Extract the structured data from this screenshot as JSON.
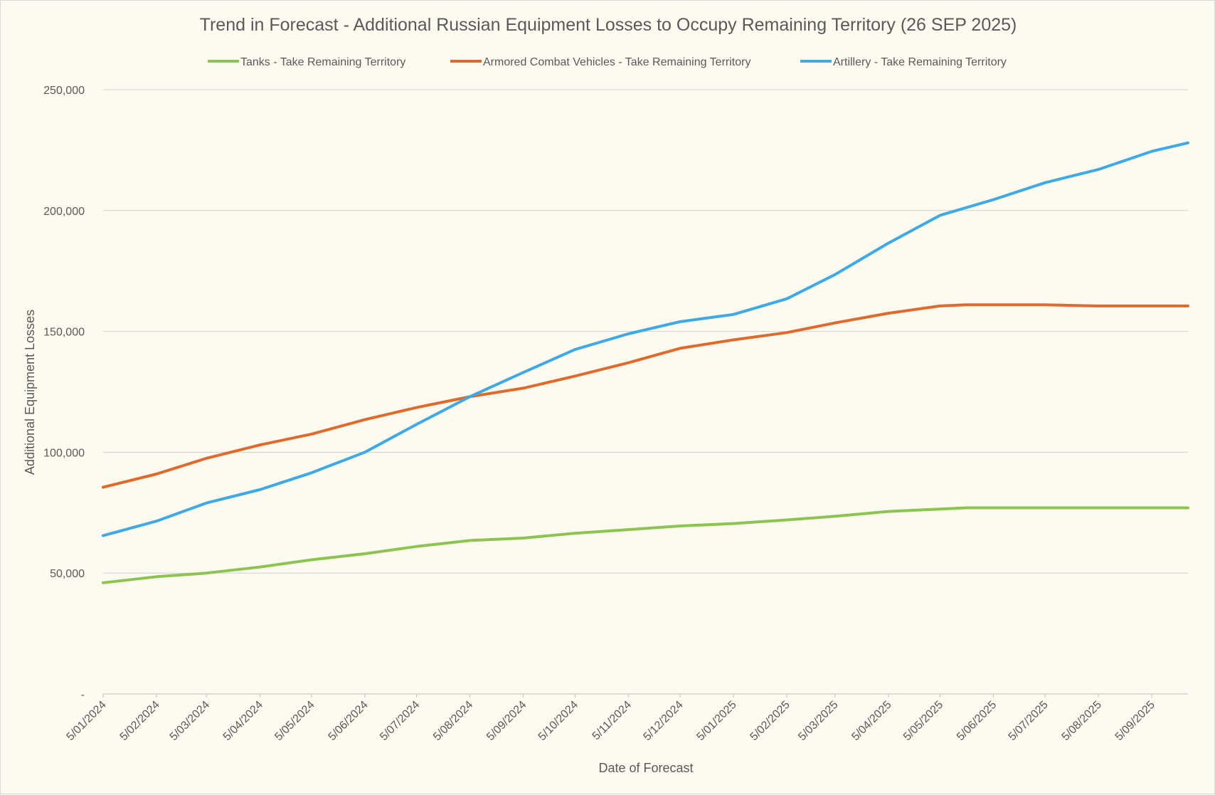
{
  "chart_data": {
    "type": "line",
    "title": "Trend in Forecast - Additional Russian Equipment Losses to Occupy Remaining Territory (26 SEP 2025)",
    "xlabel": "Date of Forecast",
    "ylabel": "Additional Equipment Losses",
    "ylim": [
      0,
      250000
    ],
    "yticks": [
      0,
      50000,
      100000,
      150000,
      200000,
      250000
    ],
    "ytick_labels": [
      "-",
      "50,000",
      "100,000",
      "150,000",
      "200,000",
      "250,000"
    ],
    "xtick_labels": [
      "5/01/2024",
      "5/02/2024",
      "5/03/2024",
      "5/04/2024",
      "5/05/2024",
      "5/06/2024",
      "5/07/2024",
      "5/08/2024",
      "5/09/2024",
      "5/10/2024",
      "5/11/2024",
      "5/12/2024",
      "5/01/2025",
      "5/02/2025",
      "5/03/2025",
      "5/04/2025",
      "5/05/2025",
      "5/06/2025",
      "5/07/2025",
      "5/08/2025",
      "5/09/2025"
    ],
    "x_range": [
      "2024-01-05",
      "2025-09-26"
    ],
    "grid": true,
    "legend_position": "top",
    "series": [
      {
        "name": "Tanks - Take Remaining Territory",
        "color": "#8dc451",
        "points": [
          [
            "2024-01-05",
            46000
          ],
          [
            "2024-02-05",
            48500
          ],
          [
            "2024-03-05",
            50000
          ],
          [
            "2024-04-05",
            52500
          ],
          [
            "2024-05-05",
            55500
          ],
          [
            "2024-06-05",
            58000
          ],
          [
            "2024-07-05",
            61000
          ],
          [
            "2024-08-05",
            63500
          ],
          [
            "2024-09-05",
            64500
          ],
          [
            "2024-10-05",
            66500
          ],
          [
            "2024-11-05",
            68000
          ],
          [
            "2024-12-05",
            69500
          ],
          [
            "2025-01-05",
            70500
          ],
          [
            "2025-02-05",
            72000
          ],
          [
            "2025-03-05",
            73500
          ],
          [
            "2025-04-05",
            75500
          ],
          [
            "2025-05-05",
            76500
          ],
          [
            "2025-05-20",
            77000
          ],
          [
            "2025-06-05",
            77000
          ],
          [
            "2025-07-05",
            77000
          ],
          [
            "2025-08-05",
            77000
          ],
          [
            "2025-09-05",
            77000
          ],
          [
            "2025-09-26",
            77000
          ]
        ]
      },
      {
        "name": "Armored Combat Vehicles - Take Remaining Territory",
        "color": "#e06a2c",
        "points": [
          [
            "2024-01-05",
            85500
          ],
          [
            "2024-02-05",
            91000
          ],
          [
            "2024-03-05",
            97500
          ],
          [
            "2024-04-05",
            103000
          ],
          [
            "2024-05-05",
            107500
          ],
          [
            "2024-06-05",
            113500
          ],
          [
            "2024-07-05",
            118500
          ],
          [
            "2024-08-05",
            123000
          ],
          [
            "2024-09-05",
            126500
          ],
          [
            "2024-10-05",
            131500
          ],
          [
            "2024-11-05",
            137000
          ],
          [
            "2024-12-05",
            143000
          ],
          [
            "2025-01-05",
            146500
          ],
          [
            "2025-02-05",
            149500
          ],
          [
            "2025-03-05",
            153500
          ],
          [
            "2025-04-05",
            157500
          ],
          [
            "2025-05-05",
            160500
          ],
          [
            "2025-05-20",
            161000
          ],
          [
            "2025-06-05",
            161000
          ],
          [
            "2025-07-05",
            161000
          ],
          [
            "2025-08-05",
            160500
          ],
          [
            "2025-09-05",
            160500
          ],
          [
            "2025-09-26",
            160500
          ]
        ]
      },
      {
        "name": "Artillery - Take Remaining Territory",
        "color": "#3fa9e6",
        "points": [
          [
            "2024-01-05",
            65500
          ],
          [
            "2024-02-05",
            71500
          ],
          [
            "2024-03-05",
            79000
          ],
          [
            "2024-04-05",
            84500
          ],
          [
            "2024-05-05",
            91500
          ],
          [
            "2024-06-05",
            100000
          ],
          [
            "2024-07-05",
            111500
          ],
          [
            "2024-08-05",
            123000
          ],
          [
            "2024-09-05",
            133000
          ],
          [
            "2024-10-05",
            142500
          ],
          [
            "2024-11-05",
            149000
          ],
          [
            "2024-12-05",
            154000
          ],
          [
            "2025-01-05",
            157000
          ],
          [
            "2025-02-05",
            163500
          ],
          [
            "2025-03-05",
            173500
          ],
          [
            "2025-04-05",
            186500
          ],
          [
            "2025-05-05",
            198000
          ],
          [
            "2025-06-05",
            204500
          ],
          [
            "2025-07-05",
            211500
          ],
          [
            "2025-08-05",
            217000
          ],
          [
            "2025-09-05",
            224500
          ],
          [
            "2025-09-26",
            228000
          ]
        ]
      }
    ]
  }
}
